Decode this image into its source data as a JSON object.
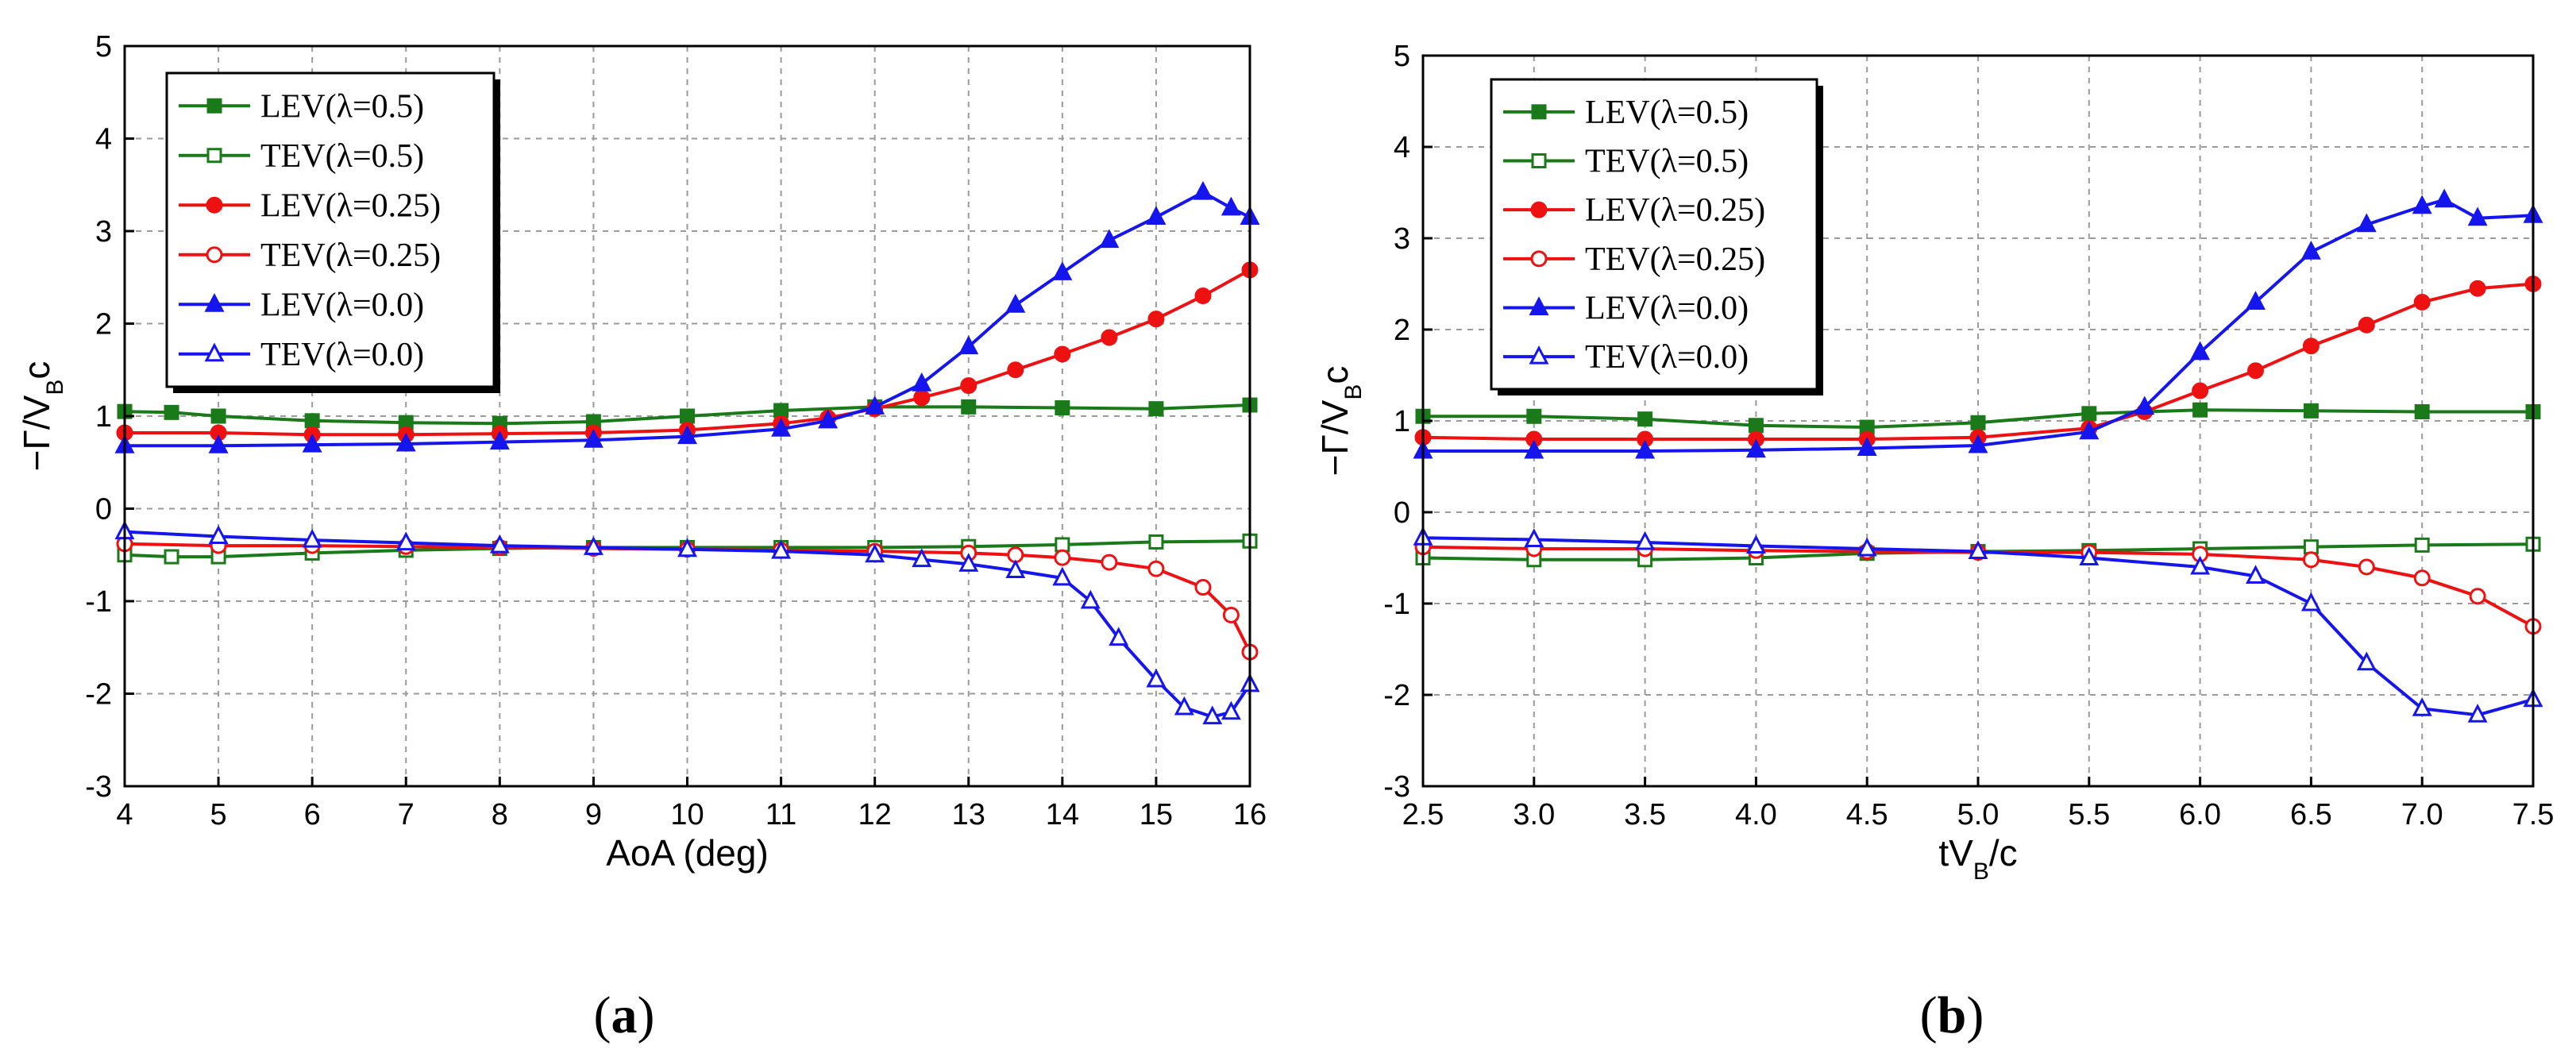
{
  "chart_data": [
    {
      "type": "line",
      "panel_label": "(a)",
      "panel_letter": "a",
      "xlabel": "AoA (deg)",
      "ylabel": "−Γ/V_Bc",
      "xlim": [
        4,
        16
      ],
      "ylim": [
        -3,
        5
      ],
      "xticks": [
        "4",
        "5",
        "6",
        "7",
        "8",
        "9",
        "10",
        "11",
        "12",
        "13",
        "14",
        "15",
        "16"
      ],
      "yticks": [
        "-3",
        "-2",
        "-1",
        "0",
        "1",
        "2",
        "3",
        "4",
        "5"
      ],
      "legend_position": "top-left",
      "series": [
        {
          "name": "LEV(λ=0.5)",
          "color": "#1a7a1a",
          "marker": "square",
          "filled": true,
          "x": [
            4,
            4.5,
            5,
            6,
            7,
            8,
            9,
            10,
            11,
            12,
            13,
            14,
            15,
            16
          ],
          "y": [
            1.05,
            1.04,
            1.0,
            0.95,
            0.93,
            0.92,
            0.94,
            1.0,
            1.06,
            1.1,
            1.1,
            1.09,
            1.08,
            1.12
          ]
        },
        {
          "name": "TEV(λ=0.5)",
          "color": "#1a7a1a",
          "marker": "square",
          "filled": false,
          "x": [
            4,
            4.5,
            5,
            6,
            7,
            8,
            9,
            10,
            11,
            12,
            13,
            14,
            15,
            16
          ],
          "y": [
            -0.5,
            -0.52,
            -0.52,
            -0.48,
            -0.45,
            -0.43,
            -0.42,
            -0.42,
            -0.42,
            -0.42,
            -0.41,
            -0.39,
            -0.36,
            -0.35
          ]
        },
        {
          "name": "LEV(λ=0.25)",
          "color": "#ee1111",
          "marker": "circle",
          "filled": true,
          "x": [
            4,
            5,
            6,
            7,
            8,
            9,
            10,
            11,
            11.5,
            12,
            12.5,
            13,
            13.5,
            14,
            14.5,
            15,
            15.5,
            16
          ],
          "y": [
            0.82,
            0.82,
            0.8,
            0.8,
            0.81,
            0.82,
            0.85,
            0.92,
            0.98,
            1.08,
            1.2,
            1.33,
            1.5,
            1.67,
            1.85,
            2.05,
            2.3,
            2.58
          ]
        },
        {
          "name": "TEV(λ=0.25)",
          "color": "#ee1111",
          "marker": "circle",
          "filled": false,
          "x": [
            4,
            5,
            6,
            7,
            8,
            9,
            10,
            11,
            12,
            13,
            13.5,
            14,
            14.5,
            15,
            15.5,
            15.8,
            16
          ],
          "y": [
            -0.38,
            -0.4,
            -0.4,
            -0.41,
            -0.42,
            -0.43,
            -0.44,
            -0.45,
            -0.46,
            -0.48,
            -0.5,
            -0.53,
            -0.58,
            -0.65,
            -0.85,
            -1.15,
            -1.55
          ]
        },
        {
          "name": "LEV(λ=0.0)",
          "color": "#1515ee",
          "marker": "triangle",
          "filled": true,
          "x": [
            4,
            5,
            6,
            7,
            8,
            9,
            10,
            11,
            11.5,
            12,
            12.5,
            13,
            13.5,
            14,
            14.5,
            15,
            15.5,
            15.8,
            16
          ],
          "y": [
            0.68,
            0.68,
            0.69,
            0.7,
            0.72,
            0.74,
            0.78,
            0.86,
            0.95,
            1.1,
            1.35,
            1.75,
            2.2,
            2.55,
            2.9,
            3.15,
            3.42,
            3.25,
            3.15
          ]
        },
        {
          "name": "TEV(λ=0.0)",
          "color": "#1515ee",
          "marker": "triangle",
          "filled": false,
          "x": [
            4,
            5,
            6,
            7,
            8,
            9,
            10,
            11,
            12,
            12.5,
            13,
            13.5,
            14,
            14.3,
            14.6,
            15,
            15.3,
            15.6,
            15.8,
            16
          ],
          "y": [
            -0.25,
            -0.3,
            -0.34,
            -0.37,
            -0.4,
            -0.42,
            -0.44,
            -0.46,
            -0.5,
            -0.55,
            -0.6,
            -0.67,
            -0.75,
            -1.0,
            -1.4,
            -1.85,
            -2.15,
            -2.25,
            -2.2,
            -1.9
          ]
        }
      ]
    },
    {
      "type": "line",
      "panel_label": "(b)",
      "panel_letter": "b",
      "xlabel": "tV_B/c",
      "ylabel": "−Γ/V_Bc",
      "xlim": [
        2.5,
        7.5
      ],
      "ylim": [
        -3,
        5
      ],
      "xticks": [
        "2.5",
        "3.0",
        "3.5",
        "4.0",
        "4.5",
        "5.0",
        "5.5",
        "6.0",
        "6.5",
        "7.0",
        "7.5"
      ],
      "yticks": [
        "-3",
        "-2",
        "-1",
        "0",
        "1",
        "2",
        "3",
        "4",
        "5"
      ],
      "legend_position": "top-left",
      "series": [
        {
          "name": "LEV(λ=0.5)",
          "color": "#1a7a1a",
          "marker": "square",
          "filled": true,
          "x": [
            2.5,
            3.0,
            3.5,
            4.0,
            4.5,
            5.0,
            5.5,
            6.0,
            6.5,
            7.0,
            7.5
          ],
          "y": [
            1.05,
            1.05,
            1.02,
            0.95,
            0.93,
            0.98,
            1.08,
            1.12,
            1.11,
            1.1,
            1.1
          ]
        },
        {
          "name": "TEV(λ=0.5)",
          "color": "#1a7a1a",
          "marker": "square",
          "filled": false,
          "x": [
            2.5,
            3.0,
            3.5,
            4.0,
            4.5,
            5.0,
            5.5,
            6.0,
            6.5,
            7.0,
            7.5
          ],
          "y": [
            -0.5,
            -0.52,
            -0.52,
            -0.5,
            -0.45,
            -0.43,
            -0.42,
            -0.4,
            -0.38,
            -0.36,
            -0.35
          ]
        },
        {
          "name": "LEV(λ=0.25)",
          "color": "#ee1111",
          "marker": "circle",
          "filled": true,
          "x": [
            2.5,
            3.0,
            3.5,
            4.0,
            4.5,
            5.0,
            5.5,
            5.75,
            6.0,
            6.25,
            6.5,
            6.75,
            7.0,
            7.25,
            7.5
          ],
          "y": [
            0.82,
            0.8,
            0.8,
            0.8,
            0.8,
            0.82,
            0.92,
            1.1,
            1.33,
            1.55,
            1.82,
            2.05,
            2.3,
            2.45,
            2.5
          ]
        },
        {
          "name": "TEV(λ=0.25)",
          "color": "#ee1111",
          "marker": "circle",
          "filled": false,
          "x": [
            2.5,
            3.0,
            3.5,
            4.0,
            4.5,
            5.0,
            5.5,
            6.0,
            6.5,
            6.75,
            7.0,
            7.25,
            7.5
          ],
          "y": [
            -0.38,
            -0.4,
            -0.4,
            -0.42,
            -0.43,
            -0.44,
            -0.44,
            -0.46,
            -0.52,
            -0.6,
            -0.72,
            -0.92,
            -1.25
          ]
        },
        {
          "name": "LEV(λ=0.0)",
          "color": "#1515ee",
          "marker": "triangle",
          "filled": true,
          "x": [
            2.5,
            3.0,
            3.5,
            4.0,
            4.5,
            5.0,
            5.5,
            5.75,
            6.0,
            6.25,
            6.5,
            6.75,
            7.0,
            7.1,
            7.25,
            7.5
          ],
          "y": [
            0.67,
            0.67,
            0.67,
            0.68,
            0.7,
            0.73,
            0.88,
            1.15,
            1.75,
            2.3,
            2.85,
            3.15,
            3.35,
            3.42,
            3.22,
            3.25
          ]
        },
        {
          "name": "TEV(λ=0.0)",
          "color": "#1515ee",
          "marker": "triangle",
          "filled": false,
          "x": [
            2.5,
            3.0,
            3.5,
            4.0,
            4.5,
            5.0,
            5.5,
            6.0,
            6.25,
            6.5,
            6.75,
            7.0,
            7.25,
            7.5
          ],
          "y": [
            -0.28,
            -0.3,
            -0.33,
            -0.37,
            -0.4,
            -0.43,
            -0.5,
            -0.6,
            -0.7,
            -1.0,
            -1.65,
            -2.15,
            -2.22,
            -2.05
          ]
        }
      ]
    }
  ]
}
